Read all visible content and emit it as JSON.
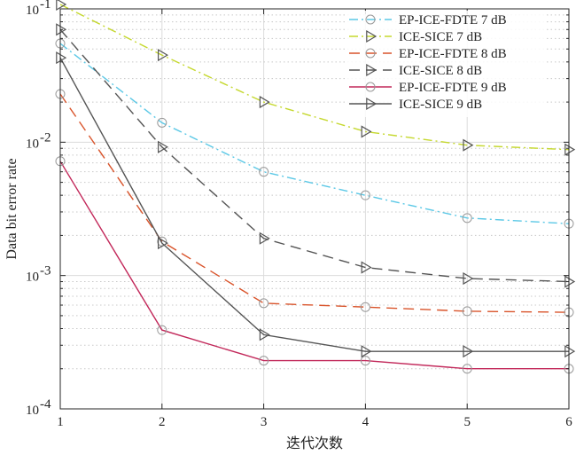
{
  "chart_data": {
    "type": "line",
    "title": "",
    "xlabel": "迭代次数",
    "ylabel": "Data bit error rate",
    "x": [
      1,
      2,
      3,
      4,
      5,
      6
    ],
    "xlim": [
      1,
      6
    ],
    "xticks": [
      "1",
      "2",
      "3",
      "4",
      "5",
      "6"
    ],
    "ylim": [
      0.0001,
      0.1
    ],
    "yscale": "log",
    "yticks": [
      {
        "base": "10",
        "exp": "-4",
        "value": 0.0001
      },
      {
        "base": "10",
        "exp": "-3",
        "value": 0.001
      },
      {
        "base": "10",
        "exp": "-2",
        "value": 0.01
      },
      {
        "base": "10",
        "exp": "-1",
        "value": 0.1
      }
    ],
    "grid": true,
    "legend_position": "top-right",
    "series": [
      {
        "name": "EP-ICE-FDTE 7 dB",
        "color": "#5bc8e6",
        "dash": "dashdot",
        "marker": "circle",
        "values": [
          0.055,
          0.014,
          0.006,
          0.004,
          0.0027,
          0.00245
        ]
      },
      {
        "name": "ICE-SICE 7 dB",
        "color": "#c5d82e",
        "dash": "dashdot",
        "marker": "triangle-right",
        "values": [
          0.108,
          0.045,
          0.02,
          0.012,
          0.0095,
          0.0088
        ]
      },
      {
        "name": "EP-ICE-FDTE 8 dB",
        "color": "#d9542b",
        "dash": "dashed",
        "marker": "circle",
        "values": [
          0.023,
          0.0018,
          0.00062,
          0.00058,
          0.00054,
          0.00053
        ]
      },
      {
        "name": "ICE-SICE 8 dB",
        "color": "#555555",
        "dash": "dashed",
        "marker": "triangle-right",
        "values": [
          0.07,
          0.0092,
          0.0019,
          0.00115,
          0.00095,
          0.0009
        ]
      },
      {
        "name": "EP-ICE-FDTE 9 dB",
        "color": "#c2285a",
        "dash": "solid",
        "marker": "circle",
        "values": [
          0.0072,
          0.00039,
          0.00023,
          0.00023,
          0.0002,
          0.0002
        ]
      },
      {
        "name": "ICE-SICE 9 dB",
        "color": "#555555",
        "dash": "solid",
        "marker": "triangle-right",
        "values": [
          0.043,
          0.00175,
          0.00036,
          0.00027,
          0.00027,
          0.00027
        ]
      }
    ]
  }
}
